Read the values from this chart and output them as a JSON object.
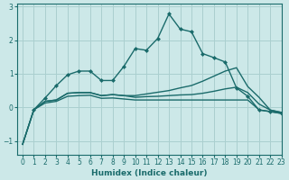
{
  "xlabel": "Humidex (Indice chaleur)",
  "bg_color": "#cce8e8",
  "grid_color": "#aacfcf",
  "line_color": "#1a6b6b",
  "xlim": [
    -0.5,
    23
  ],
  "ylim": [
    -1.4,
    3.1
  ],
  "xticks": [
    0,
    1,
    2,
    3,
    4,
    5,
    6,
    7,
    8,
    9,
    10,
    11,
    12,
    13,
    14,
    15,
    16,
    17,
    18,
    19,
    20,
    21,
    22,
    23
  ],
  "yticks": [
    -1,
    0,
    1,
    2,
    3
  ],
  "series": [
    {
      "x": [
        0,
        1,
        2,
        3,
        4,
        5,
        6,
        7,
        8,
        9,
        10,
        11,
        12,
        13,
        14,
        15,
        16,
        17,
        18,
        19,
        20,
        21,
        22,
        23
      ],
      "y": [
        -1.1,
        -0.07,
        0.13,
        0.18,
        0.33,
        0.35,
        0.36,
        0.27,
        0.28,
        0.25,
        0.22,
        0.22,
        0.22,
        0.22,
        0.22,
        0.22,
        0.22,
        0.22,
        0.22,
        0.22,
        0.22,
        -0.07,
        -0.13,
        -0.18
      ],
      "marker": false,
      "lw": 1.0
    },
    {
      "x": [
        0,
        1,
        2,
        3,
        4,
        5,
        6,
        7,
        8,
        9,
        10,
        11,
        12,
        13,
        14,
        15,
        16,
        17,
        18,
        19,
        20,
        21,
        22,
        23
      ],
      "y": [
        -1.1,
        -0.07,
        0.18,
        0.22,
        0.42,
        0.44,
        0.44,
        0.35,
        0.38,
        0.35,
        0.3,
        0.32,
        0.33,
        0.35,
        0.37,
        0.38,
        0.42,
        0.48,
        0.55,
        0.6,
        0.44,
        0.1,
        -0.08,
        -0.15
      ],
      "marker": false,
      "lw": 1.0
    },
    {
      "x": [
        0,
        1,
        2,
        3,
        4,
        5,
        6,
        7,
        8,
        9,
        10,
        11,
        12,
        13,
        14,
        15,
        16,
        17,
        18,
        19,
        20,
        21,
        22,
        23
      ],
      "y": [
        -1.1,
        -0.07,
        0.18,
        0.22,
        0.42,
        0.44,
        0.44,
        0.35,
        0.38,
        0.35,
        0.35,
        0.4,
        0.45,
        0.5,
        0.58,
        0.65,
        0.78,
        0.93,
        1.08,
        1.18,
        0.62,
        0.3,
        -0.08,
        -0.15
      ],
      "marker": false,
      "lw": 1.0
    },
    {
      "x": [
        1,
        2,
        3,
        4,
        5,
        6,
        7,
        8,
        9,
        10,
        11,
        12,
        13,
        14,
        15,
        16,
        17,
        18,
        19,
        20,
        21,
        22,
        23
      ],
      "y": [
        -0.07,
        0.28,
        0.65,
        0.97,
        1.08,
        1.08,
        0.8,
        0.8,
        1.22,
        1.75,
        1.7,
        2.05,
        2.78,
        2.33,
        2.25,
        1.6,
        1.48,
        1.35,
        0.58,
        0.33,
        -0.08,
        -0.12,
        -0.18
      ],
      "marker": true,
      "lw": 1.0
    }
  ]
}
